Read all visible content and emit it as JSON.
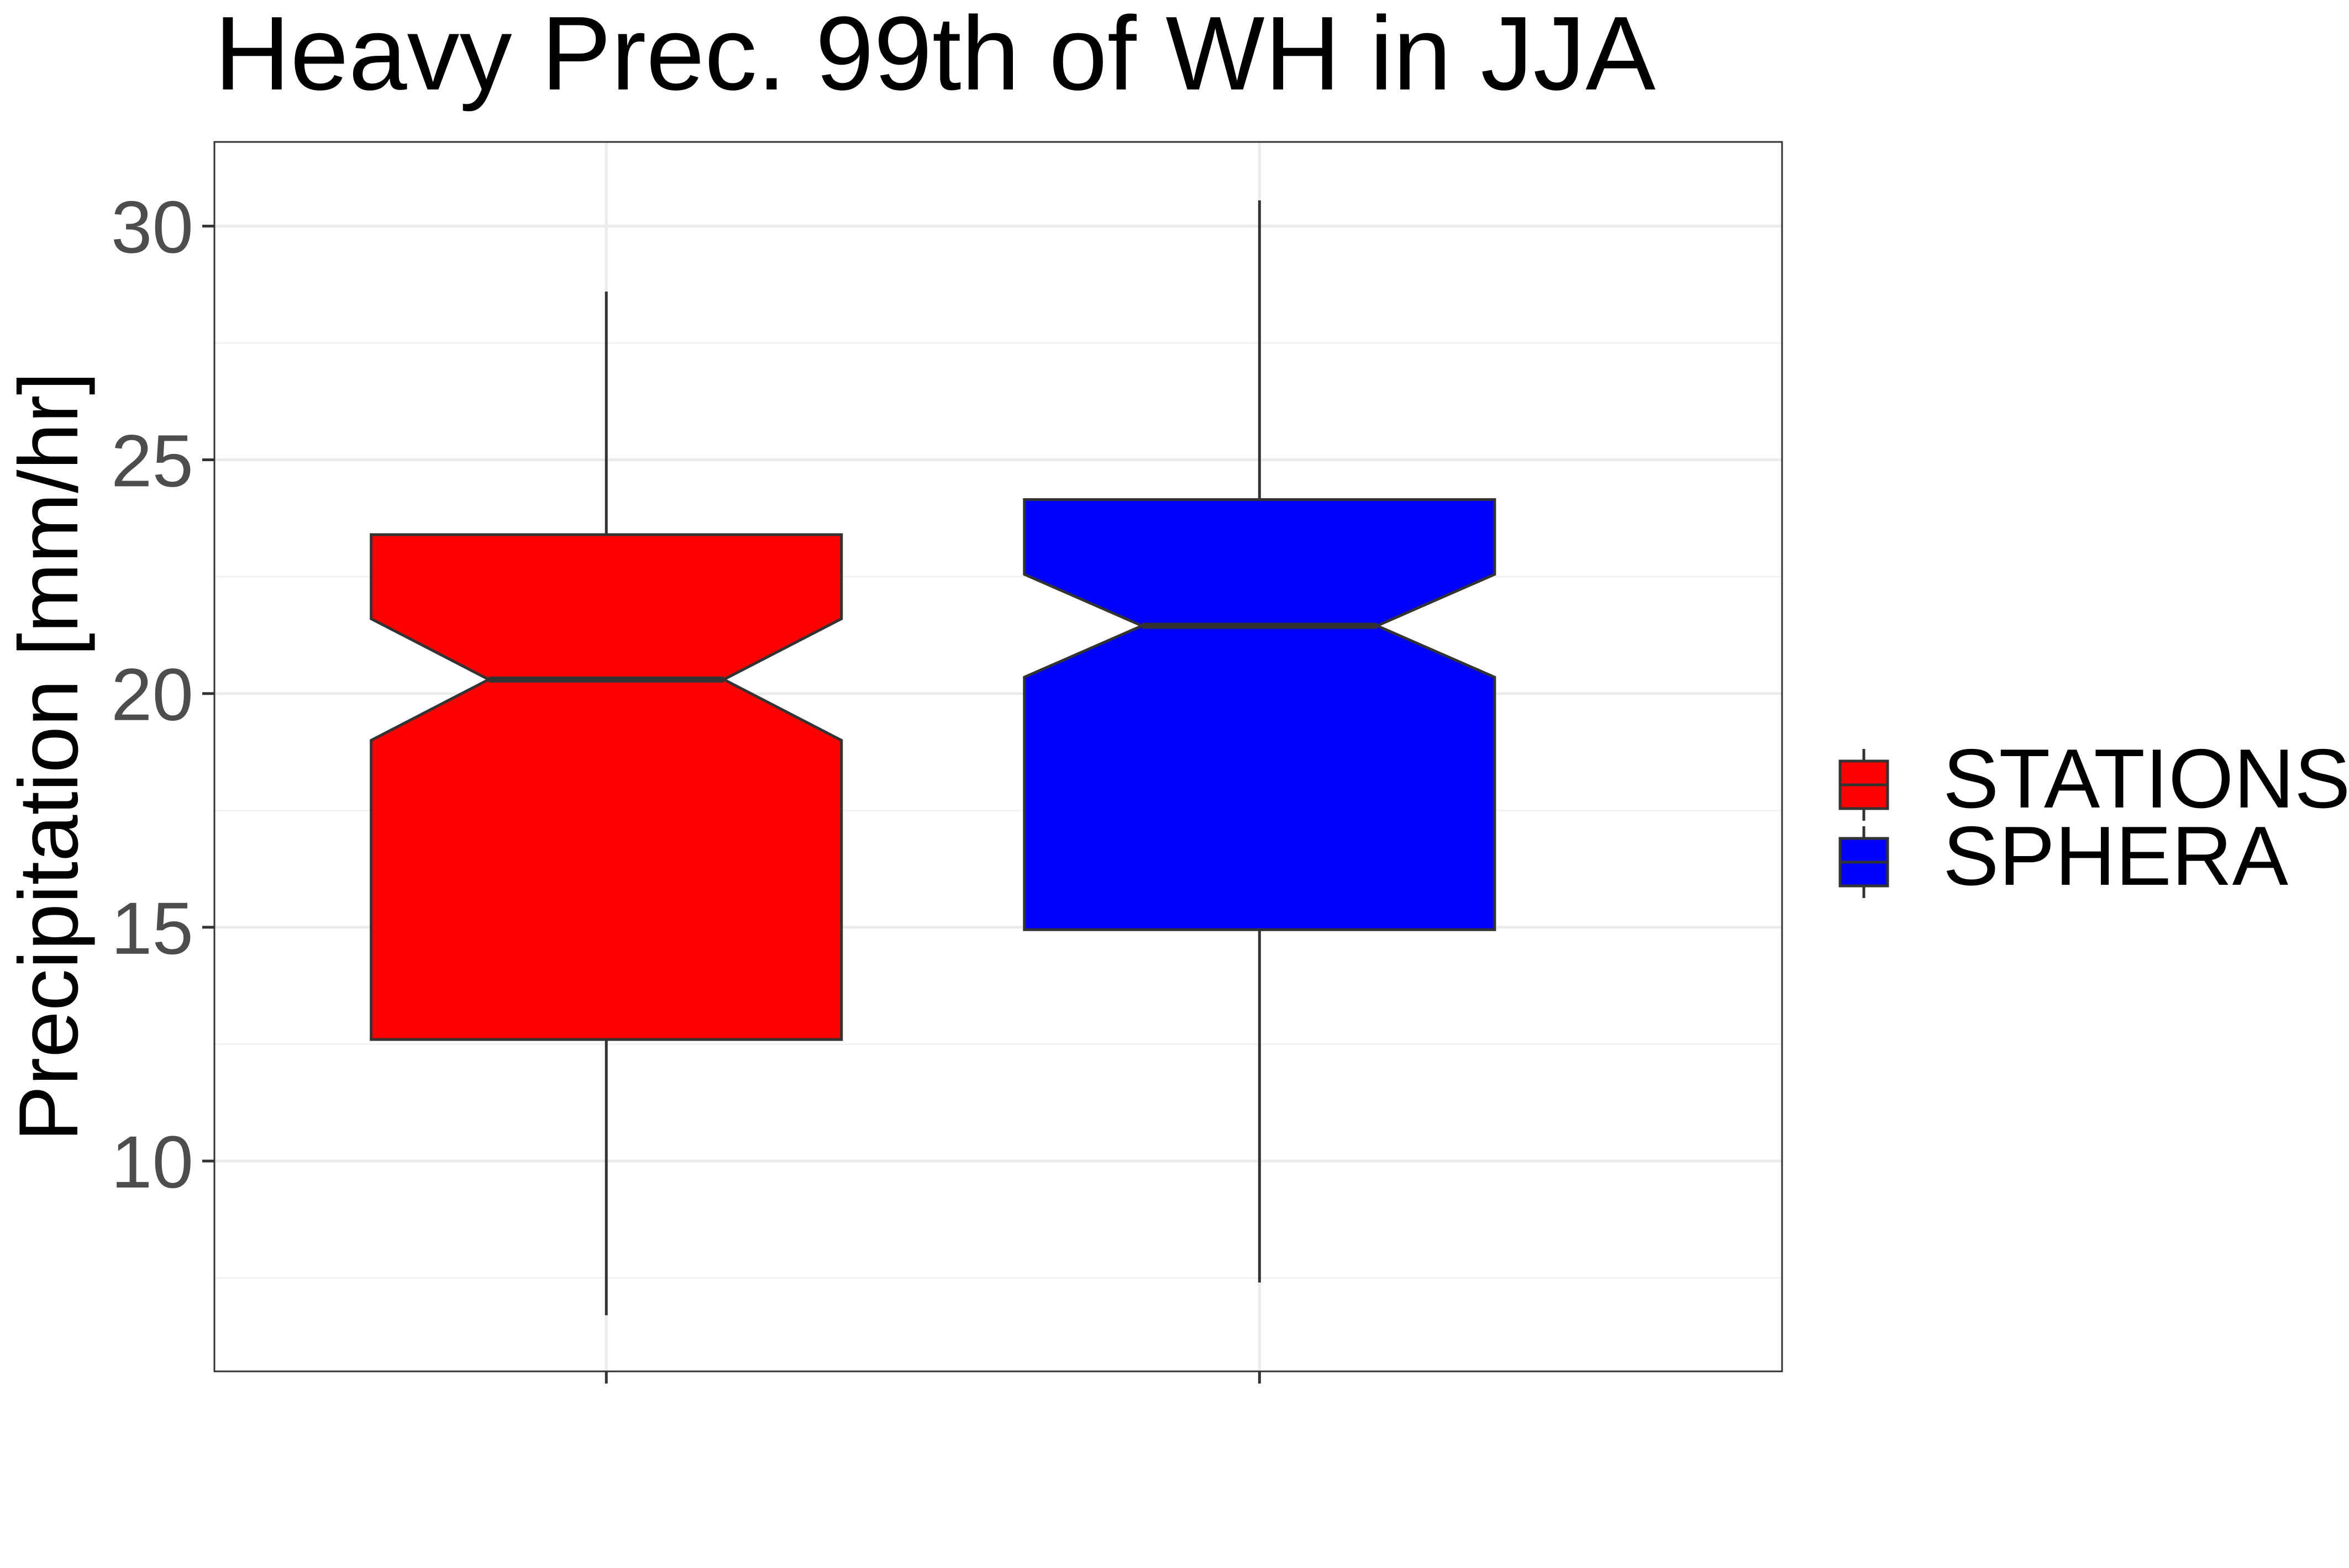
{
  "chart_data": {
    "type": "boxplot",
    "title": "Heavy Prec. 99th of WH in JJA",
    "xlabel": "",
    "ylabel": "Precipitation [mm/hr]",
    "ylim": [
      5.5,
      31.8
    ],
    "yticks": [
      10,
      15,
      20,
      25,
      30
    ],
    "grid": true,
    "notched": true,
    "legend": {
      "position": "right",
      "entries": [
        {
          "name": "STATIONS",
          "color": "#ff0000"
        },
        {
          "name": "SPHERA",
          "color": "#0000ff"
        }
      ]
    },
    "series": [
      {
        "name": "STATIONS",
        "color": "#ff0000",
        "whisker_low": 6.7,
        "q1": 12.6,
        "median": 20.3,
        "q3": 23.4,
        "whisker_high": 28.6,
        "notch_low": 19.0,
        "notch_high": 21.6
      },
      {
        "name": "SPHERA",
        "color": "#0000ff",
        "whisker_low": 7.4,
        "q1": 14.95,
        "median": 21.45,
        "q3": 24.15,
        "whisker_high": 30.55,
        "notch_low": 20.35,
        "notch_high": 22.55
      }
    ]
  }
}
